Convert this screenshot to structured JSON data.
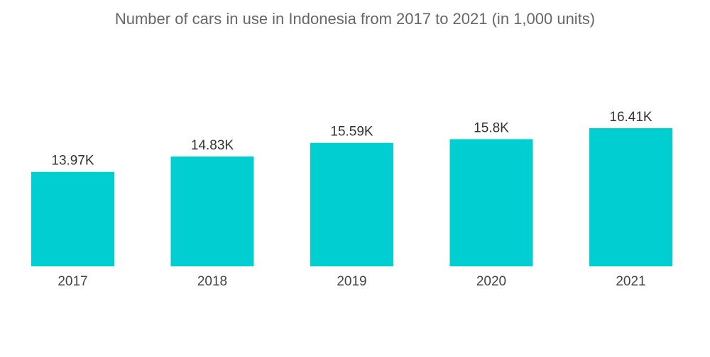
{
  "chart_data": {
    "type": "bar",
    "title": "Number of cars in use in Indonesia from 2017 to 2021 (in 1,000 units)",
    "categories": [
      "2017",
      "2018",
      "2019",
      "2020",
      "2021"
    ],
    "values": [
      13.97,
      14.83,
      15.59,
      15.8,
      16.41
    ],
    "value_labels": [
      "13.97K",
      "14.83K",
      "15.59K",
      "15.8K",
      "16.41K"
    ],
    "xlabel": "",
    "ylabel": "",
    "ylim": [
      0,
      16.41
    ],
    "grid": false,
    "legend": "none",
    "bar_color": "#00CED1"
  }
}
